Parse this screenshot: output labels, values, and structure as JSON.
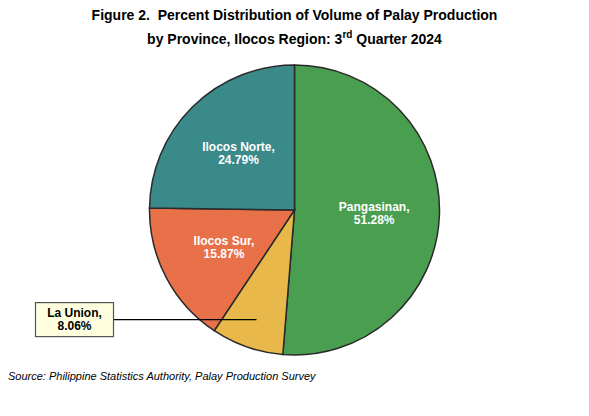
{
  "chart_data": {
    "type": "pie",
    "title": "Figure 2.  Percent Distribution of Volume of Palay Production",
    "subtitle": "by Province, Ilocos Region: 3rd Quarter 2024",
    "caption": "Source: Philippine Statistics Authority, Palay Production Survey",
    "categories": [
      "Pangasinan",
      "La Union",
      "Ilocos Sur",
      "Ilocos Norte"
    ],
    "values": [
      51.28,
      8.06,
      15.87,
      24.79
    ],
    "value_labels": [
      "Pangasinan,\n51.28%",
      "La Union,\n8.06%",
      "Ilocos Sur,\n15.87%",
      "Ilocos Norte,\n24.79%"
    ],
    "colors": [
      "#4a9e4f",
      "#e8b84b",
      "#e8714a",
      "#3a8a8a"
    ],
    "data_labels": true
  }
}
